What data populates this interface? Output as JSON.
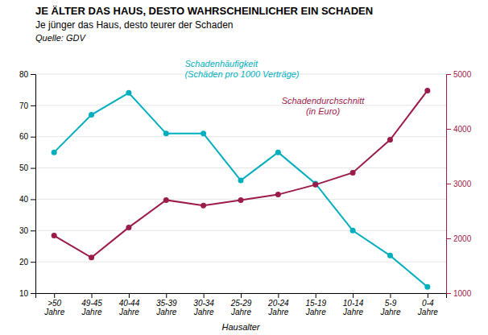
{
  "chart_data": {
    "type": "line",
    "title": "JE ÄLTER DAS HAUS, DESTO WAHRSCHEINLICHER EIN SCHADEN",
    "subtitle": "Je jünger das Haus, desto teurer der Schaden",
    "source": "Quelle: GDV",
    "xlabel": "Hausalter",
    "categories": [
      ">50\nJahre",
      "49-45\nJahre",
      "40-44\nJahre",
      "35-39\nJahre",
      "30-34\nJahre",
      "25-29\nJahre",
      "20-24\nJahre",
      "15-19\nJahre",
      "10-14\nJahre",
      "5-9\nJahre",
      "0-4\nJahre"
    ],
    "series": [
      {
        "name": "Schadenhäufigkeit\n(Schäden pro 1000 Verträge)",
        "color": "#00AFBE",
        "marker": "circle",
        "values": [
          55,
          67,
          74,
          61,
          61,
          46,
          55,
          45,
          30,
          22,
          12
        ]
      },
      {
        "name": "Schadendurchschnitt\n(in Euro)",
        "color": "#9B1B4B",
        "marker": "circle",
        "axis": "y2",
        "values": [
          2050,
          1650,
          2200,
          2700,
          2600,
          2700,
          2800,
          2980,
          3200,
          3800,
          4700
        ]
      }
    ],
    "ylim": [
      10,
      80
    ],
    "yticks": [
      10,
      20,
      30,
      40,
      50,
      60,
      70,
      80
    ],
    "y2lim": [
      1000,
      5000
    ],
    "y2ticks": [
      1000,
      2000,
      3000,
      4000,
      5000
    ],
    "grid": true
  }
}
